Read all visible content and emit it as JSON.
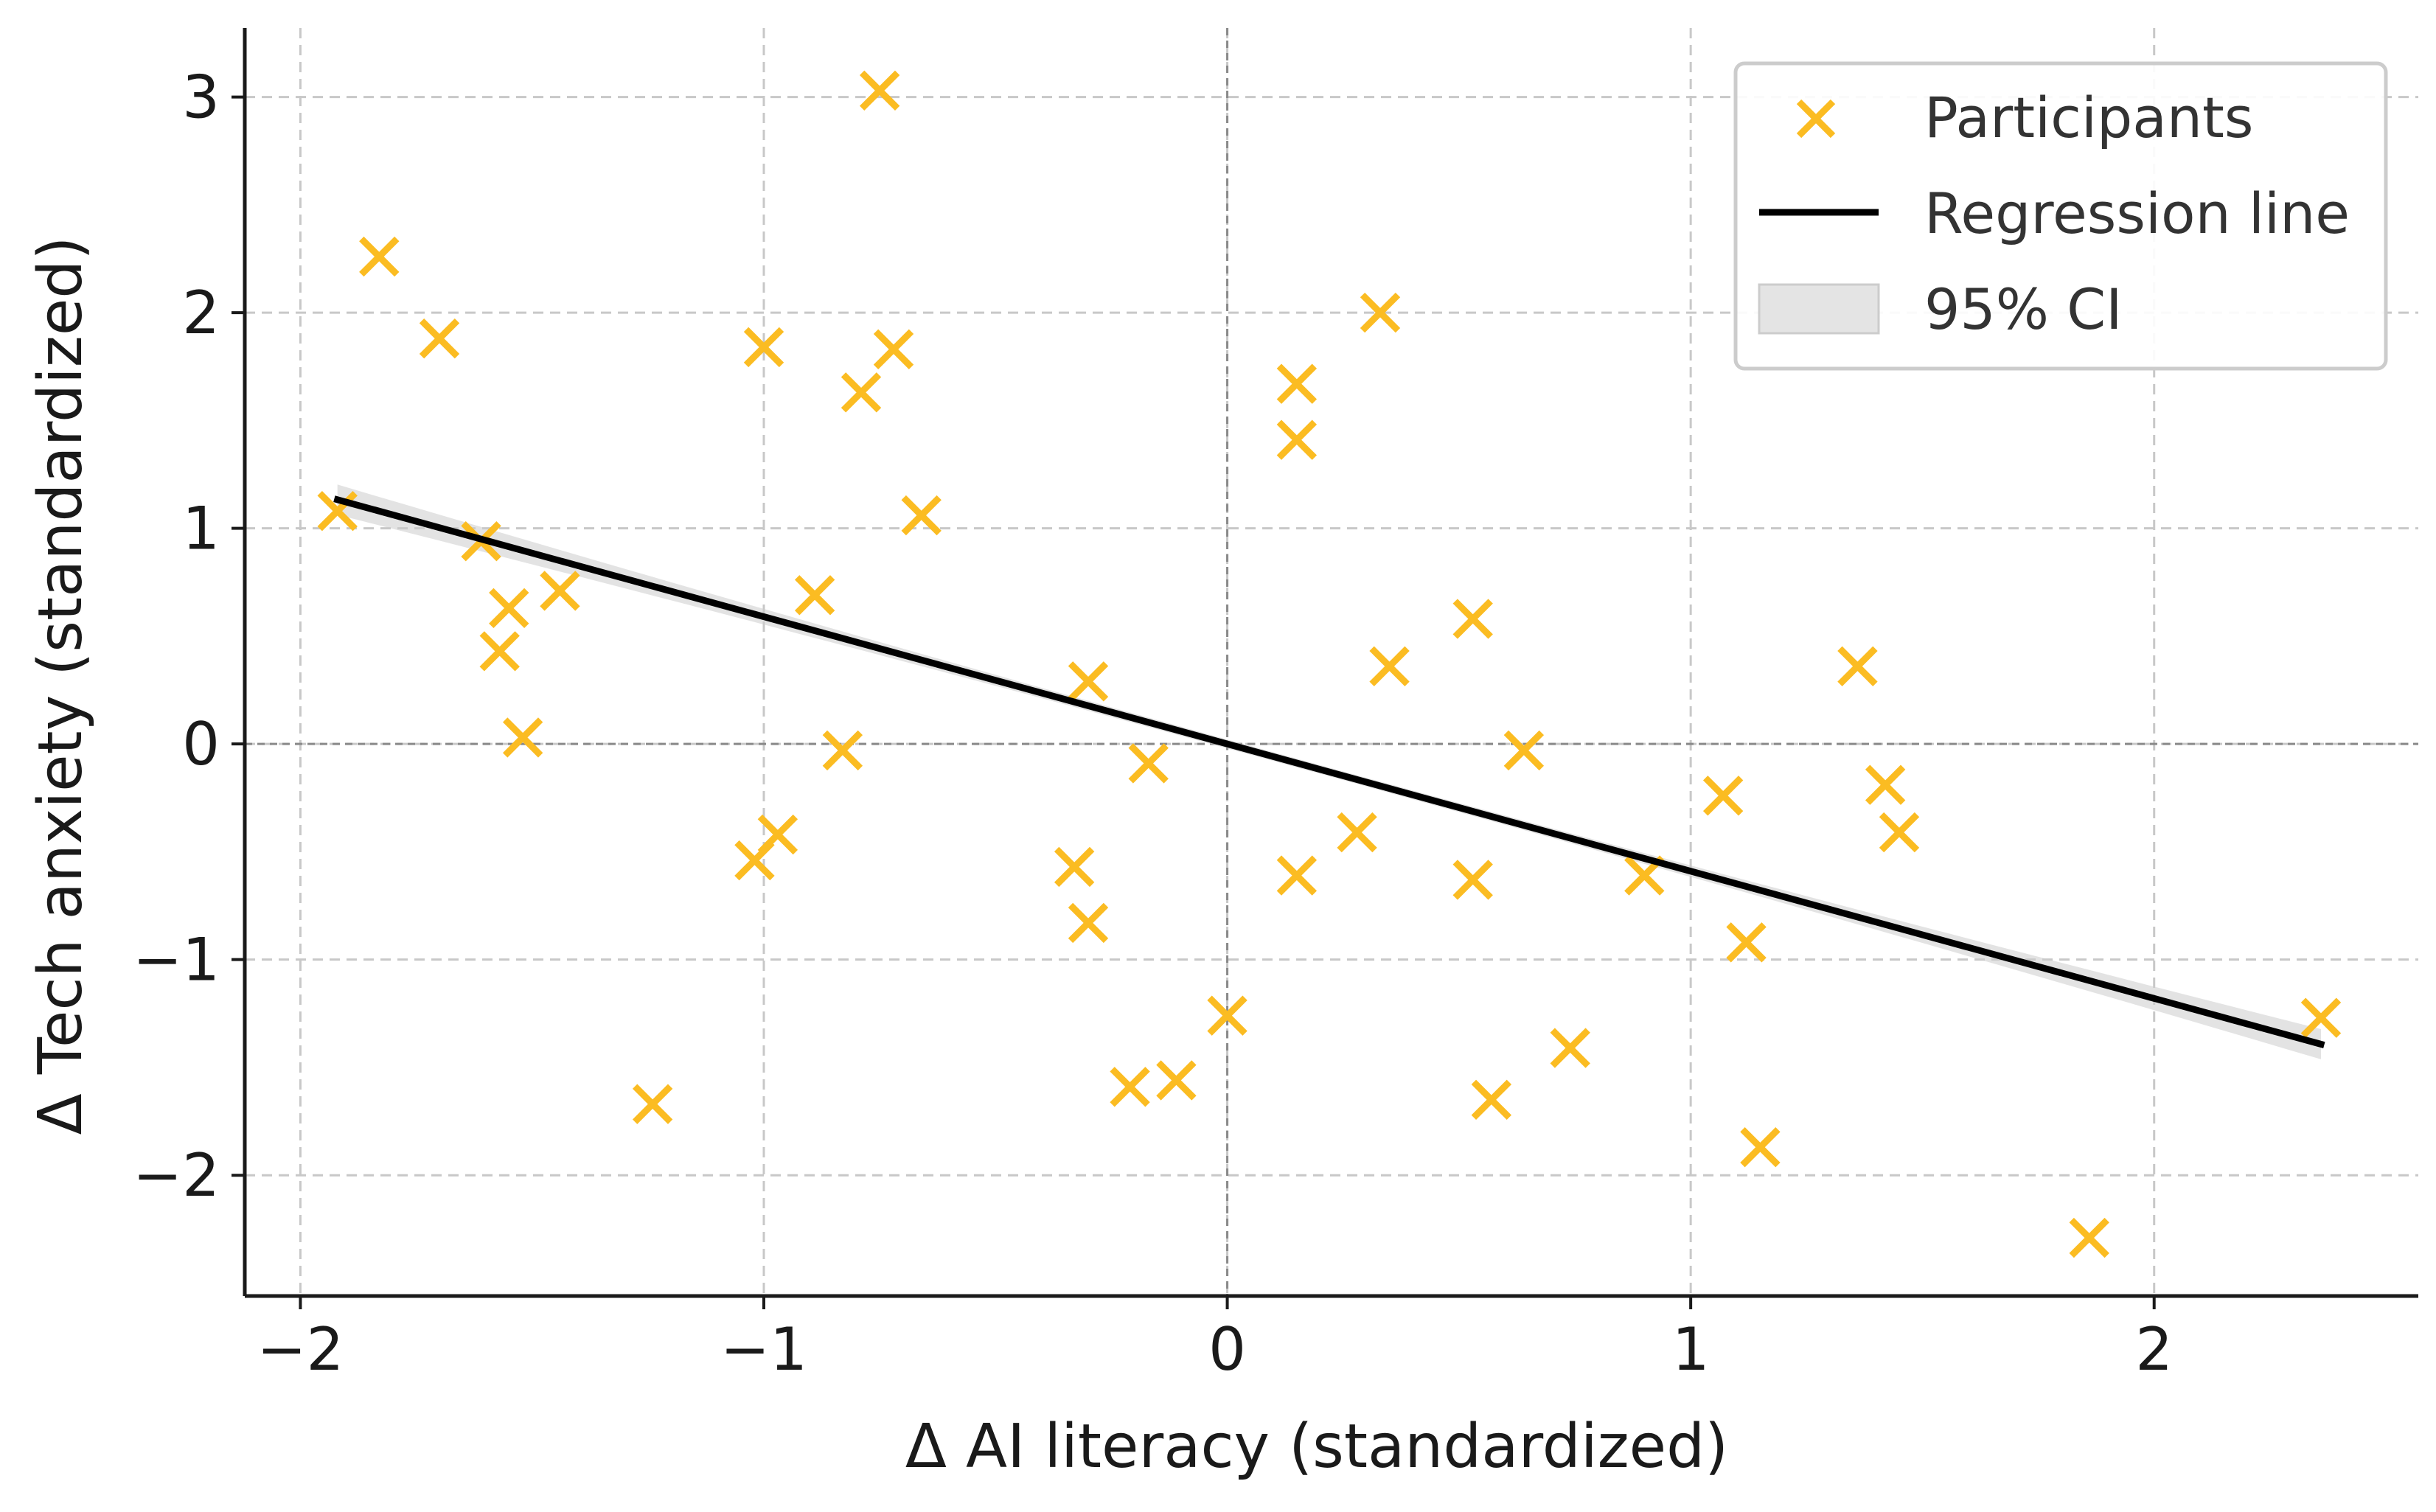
{
  "chart_data": {
    "type": "scatter",
    "title": "",
    "xlabel": "Δ AI literacy (standardized)",
    "ylabel": "Δ Tech anxiety (standardized)",
    "xlim": [
      -2.12,
      2.57
    ],
    "ylim": [
      -2.56,
      3.32
    ],
    "xticks": [
      -2,
      -1,
      0,
      1,
      2
    ],
    "yticks": [
      -2,
      -1,
      0,
      1,
      2,
      3
    ],
    "xtick_labels": [
      "−2",
      "−1",
      "0",
      "1",
      "2"
    ],
    "ytick_labels": [
      "−2",
      "−1",
      "0",
      "1",
      "2",
      "3"
    ],
    "grid": true,
    "legend_position": "top-right",
    "reference_lines": {
      "x": 0,
      "y": 0
    },
    "colors": {
      "points": "#fbbc22",
      "regression": "#000000",
      "ci": "#cccccc"
    },
    "series": [
      {
        "name": "Participants",
        "kind": "scatter",
        "marker": "x",
        "points": [
          [
            -1.92,
            1.08
          ],
          [
            -1.83,
            2.26
          ],
          [
            -1.7,
            1.88
          ],
          [
            -1.61,
            0.94
          ],
          [
            -1.57,
            0.43
          ],
          [
            -1.55,
            0.63
          ],
          [
            -1.52,
            0.03
          ],
          [
            -1.44,
            0.71
          ],
          [
            -1.24,
            -1.67
          ],
          [
            -1.02,
            -0.54
          ],
          [
            -1.0,
            1.84
          ],
          [
            -0.97,
            -0.42
          ],
          [
            -0.89,
            0.69
          ],
          [
            -0.83,
            -0.03
          ],
          [
            -0.79,
            1.63
          ],
          [
            -0.75,
            3.03
          ],
          [
            -0.72,
            1.83
          ],
          [
            -0.66,
            1.06
          ],
          [
            -0.33,
            -0.57
          ],
          [
            -0.3,
            -0.83
          ],
          [
            -0.3,
            0.29
          ],
          [
            -0.21,
            -1.59
          ],
          [
            -0.17,
            -0.09
          ],
          [
            -0.11,
            -1.56
          ],
          [
            0.0,
            -1.26
          ],
          [
            0.15,
            1.67
          ],
          [
            0.15,
            1.41
          ],
          [
            0.15,
            -0.61
          ],
          [
            0.28,
            -0.41
          ],
          [
            0.33,
            2.0
          ],
          [
            0.35,
            0.36
          ],
          [
            0.53,
            0.58
          ],
          [
            0.53,
            -0.63
          ],
          [
            0.57,
            -1.65
          ],
          [
            0.64,
            -0.03
          ],
          [
            0.74,
            -1.41
          ],
          [
            0.9,
            -0.61
          ],
          [
            1.07,
            -0.24
          ],
          [
            1.12,
            -0.92
          ],
          [
            1.15,
            -1.87
          ],
          [
            1.36,
            0.36
          ],
          [
            1.42,
            -0.19
          ],
          [
            1.45,
            -0.41
          ],
          [
            1.86,
            -2.29
          ],
          [
            2.36,
            -1.27
          ]
        ]
      },
      {
        "name": "Regression line",
        "kind": "line",
        "slope": -0.59,
        "intercept": 0.0,
        "x_range": [
          -1.92,
          2.36
        ]
      },
      {
        "name": "95% CI",
        "kind": "band",
        "half_width_at_ends": 0.07,
        "half_width_at_center": 0.02
      }
    ]
  }
}
